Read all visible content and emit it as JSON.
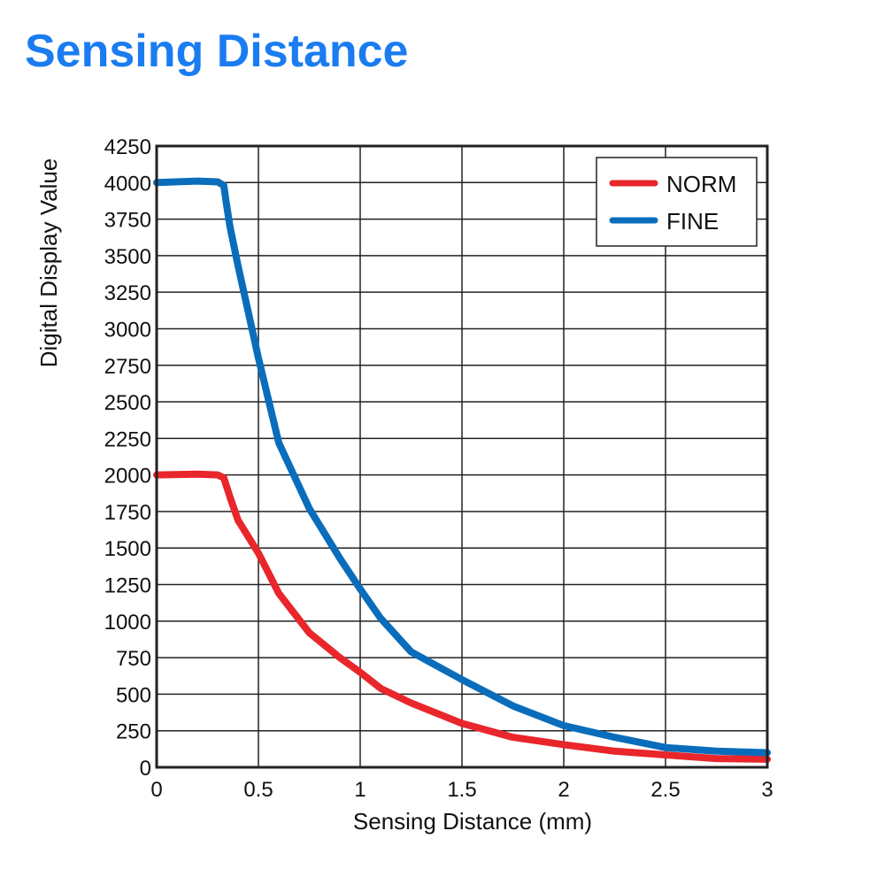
{
  "page": {
    "title": "Sensing Distance",
    "title_color": "#1a7cf0"
  },
  "chart_data": {
    "type": "line",
    "title": "",
    "xlabel": "Sensing Distance (mm)",
    "ylabel": "Digital Display Value",
    "xlim": [
      0,
      3
    ],
    "ylim": [
      0,
      4250
    ],
    "xticks": [
      "0",
      "0.5",
      "1",
      "1.5",
      "2",
      "2.5",
      "3"
    ],
    "xtick_values": [
      0,
      0.5,
      1,
      1.5,
      2,
      2.5,
      3
    ],
    "yticks": [
      "0",
      "250",
      "500",
      "750",
      "1000",
      "1250",
      "1500",
      "1750",
      "2000",
      "2250",
      "2500",
      "2750",
      "3000",
      "3250",
      "3500",
      "3750",
      "4000",
      "4250"
    ],
    "ytick_values": [
      0,
      250,
      500,
      750,
      1000,
      1250,
      1500,
      1750,
      2000,
      2250,
      2500,
      2750,
      3000,
      3250,
      3500,
      3750,
      4000,
      4250
    ],
    "grid": true,
    "legend": "top-right",
    "series": [
      {
        "name": "NORM",
        "color": "#e8262b",
        "x": [
          0,
          0.2,
          0.3,
          0.33,
          0.36,
          0.4,
          0.5,
          0.6,
          0.75,
          0.9,
          1.0,
          1.1,
          1.25,
          1.5,
          1.75,
          2.0,
          2.25,
          2.5,
          2.75,
          3.0
        ],
        "y": [
          2000,
          2005,
          2000,
          1980,
          1850,
          1690,
          1465,
          1190,
          920,
          750,
          650,
          540,
          440,
          300,
          205,
          155,
          110,
          85,
          60,
          55
        ]
      },
      {
        "name": "FINE",
        "color": "#0a6dbb",
        "x": [
          0,
          0.2,
          0.3,
          0.33,
          0.34,
          0.36,
          0.4,
          0.5,
          0.6,
          0.75,
          0.9,
          1.0,
          1.1,
          1.25,
          1.5,
          1.75,
          2.0,
          2.25,
          2.5,
          2.75,
          3.0
        ],
        "y": [
          4000,
          4010,
          4005,
          3980,
          3880,
          3700,
          3430,
          2800,
          2220,
          1770,
          1430,
          1220,
          1020,
          790,
          600,
          420,
          285,
          205,
          135,
          110,
          100
        ]
      }
    ]
  }
}
